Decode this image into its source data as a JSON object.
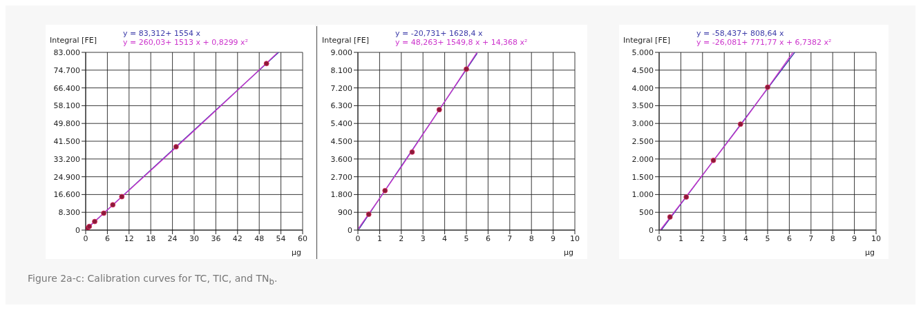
{
  "chart_data": [
    {
      "type": "scatter",
      "ylabel": "Integral [FE]",
      "xlabel": "µg",
      "legend": "top",
      "grid": true,
      "xlim": [
        0,
        60
      ],
      "xticks": [
        0,
        6,
        12,
        18,
        24,
        30,
        36,
        42,
        48,
        54,
        60
      ],
      "ylim": [
        0,
        83000
      ],
      "yticks": [
        0,
        {
          "value": 8300,
          "label": "8.300"
        },
        {
          "value": 16600,
          "label": "16.600"
        },
        {
          "value": 24900,
          "label": "24.900"
        },
        {
          "value": 33200,
          "label": "33.200"
        },
        {
          "value": 41500,
          "label": "41.500"
        },
        {
          "value": 49800,
          "label": "49.800"
        },
        {
          "value": 58100,
          "label": "58.100"
        },
        {
          "value": 66400,
          "label": "66.400"
        },
        {
          "value": 74700,
          "label": "74.700"
        },
        {
          "value": 83000,
          "label": "83.000"
        }
      ],
      "series": [
        {
          "type": "scatter",
          "marker": "circle",
          "color": "#8b1a3a",
          "x": [
            0.5,
            1,
            2.5,
            5,
            7.5,
            10,
            25,
            50
          ],
          "values": [
            900,
            1700,
            4000,
            7900,
            11800,
            15600,
            38900,
            77800
          ]
        },
        {
          "type": "line",
          "name": "y = 83,312+ 1554 x",
          "color": "#3a3aa8",
          "x": [
            0,
            53.36
          ],
          "values": [
            100,
            83000
          ]
        },
        {
          "type": "line",
          "name": "y = 260,03+ 1513 x + 0,8299 x²",
          "color": "#cc33cc",
          "x": [
            0,
            10,
            20,
            30,
            40,
            53
          ],
          "values": [
            300,
            15500,
            30900,
            46400,
            62100,
            82800
          ]
        }
      ],
      "annotations": [
        "Figure 2a-c: Calibration curves for TC, TIC, and TN$_{b}$."
      ]
    },
    {
      "type": "scatter",
      "ylabel": "Integral [FE]",
      "xlabel": "µg",
      "legend": "top",
      "grid": true,
      "xlim": [
        0,
        10
      ],
      "xticks": [
        0,
        1,
        2,
        3,
        4,
        5,
        6,
        7,
        8,
        9,
        10
      ],
      "ylim": [
        0,
        9000
      ],
      "yticks": [
        0,
        900,
        {
          "value": 1800,
          "label": "1.800"
        },
        {
          "value": 2700,
          "label": "2.700"
        },
        {
          "value": 3600,
          "label": "3.600"
        },
        {
          "value": 4500,
          "label": "4.500"
        },
        {
          "value": 5400,
          "label": "5.400"
        },
        {
          "value": 6300,
          "label": "6.300"
        },
        {
          "value": 7200,
          "label": "7.200"
        },
        {
          "value": 8100,
          "label": "8.100"
        },
        {
          "value": 9000,
          "label": "9.000"
        }
      ],
      "series": [
        {
          "type": "scatter",
          "marker": "circle",
          "color": "#8b1a3a",
          "x": [
            0.5,
            1.25,
            2.5,
            3.75,
            5
          ],
          "values": [
            800,
            2000,
            3950,
            6100,
            8150
          ]
        },
        {
          "type": "line",
          "name": "y = -20,731+ 1628,4 x",
          "color": "#3a3aa8",
          "x": [
            0.05,
            5.5
          ],
          "values": [
            50,
            8950
          ]
        },
        {
          "type": "line",
          "name": "y = 48,263+ 1549,8 x + 14,368 x²",
          "color": "#cc33cc",
          "x": [
            0,
            1,
            2,
            3,
            4,
            5.49
          ],
          "values": [
            50,
            1600,
            3200,
            4850,
            6500,
            9000
          ]
        }
      ]
    },
    {
      "type": "scatter",
      "ylabel": "Integral [FE]",
      "xlabel": "µg",
      "legend": "top",
      "grid": true,
      "xlim": [
        0,
        10
      ],
      "xticks": [
        0,
        1,
        2,
        3,
        4,
        5,
        6,
        7,
        8,
        9,
        10
      ],
      "ylim": [
        0,
        5000
      ],
      "yticks": [
        0,
        500,
        {
          "value": 1000,
          "label": "1.000"
        },
        {
          "value": 1500,
          "label": "1.500"
        },
        {
          "value": 2000,
          "label": "2.000"
        },
        {
          "value": 2500,
          "label": "2.500"
        },
        {
          "value": 3000,
          "label": "3.000"
        },
        {
          "value": 3500,
          "label": "3.500"
        },
        {
          "value": 4000,
          "label": "4.000"
        },
        {
          "value": 4500,
          "label": "4.500"
        },
        {
          "value": 5000,
          "label": "5.000"
        }
      ],
      "series": [
        {
          "type": "scatter",
          "marker": "circle",
          "color": "#8b1a3a",
          "x": [
            0.5,
            1.25,
            2.5,
            3.75,
            5
          ],
          "values": [
            370,
            930,
            1960,
            2980,
            4020
          ]
        },
        {
          "type": "line",
          "name": "y = -58,437+ 808,64 x",
          "color": "#3a3aa8",
          "x": [
            0.1,
            6.25
          ],
          "values": [
            0,
            5000
          ]
        },
        {
          "type": "line",
          "name": "y = -26,081+ 771,77 x + 6,7382 x²",
          "color": "#cc33cc",
          "x": [
            0.05,
            1,
            2,
            3,
            4,
            5,
            6.17
          ],
          "values": [
            0,
            750,
            1550,
            2350,
            3150,
            4000,
            5000
          ]
        }
      ]
    }
  ]
}
